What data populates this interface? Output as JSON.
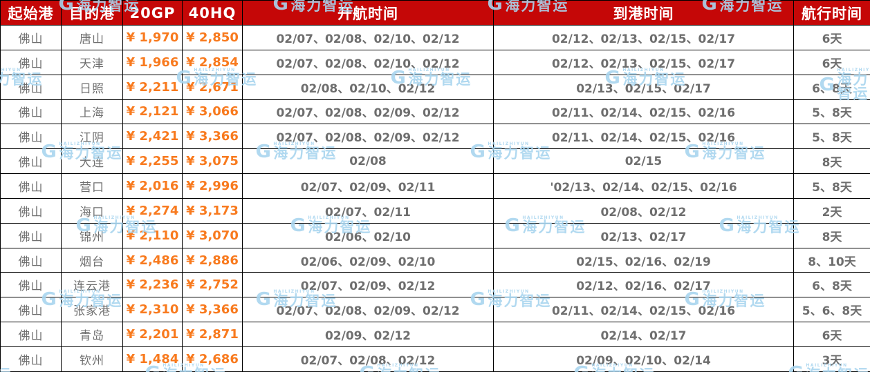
{
  "header": {
    "columns": [
      "起始港",
      "目的港",
      "20GP",
      "40HQ",
      "开航时间",
      "到港时间",
      "航行时间"
    ]
  },
  "rows": [
    {
      "origin": "佛山",
      "destination": "唐山",
      "gp20": "¥ 1,970",
      "hq40": "¥ 2,850",
      "departure": "02/07、02/08、02/10、02/12",
      "arrival": "02/12、02/13、02/15、02/17",
      "duration": "6天"
    },
    {
      "origin": "佛山",
      "destination": "天津",
      "gp20": "¥ 1,966",
      "hq40": "¥ 2,854",
      "departure": "02/07、02/08、02/10、02/12",
      "arrival": "02/12、02/13、02/15、02/17",
      "duration": "6天"
    },
    {
      "origin": "佛山",
      "destination": "日照",
      "gp20": "¥ 2,211",
      "hq40": "¥ 2,671",
      "departure": "02/08、02/10、02/12",
      "arrival": "02/13、02/15、02/17",
      "duration": "6、8天"
    },
    {
      "origin": "佛山",
      "destination": "上海",
      "gp20": "¥ 2,121",
      "hq40": "¥ 3,066",
      "departure": "02/07、02/08、02/09、02/12",
      "arrival": "02/11、02/14、02/15、02/16",
      "duration": "5、8天"
    },
    {
      "origin": "佛山",
      "destination": "江阴",
      "gp20": "¥ 2,421",
      "hq40": "¥ 3,366",
      "departure": "02/07、02/08、02/09、02/12",
      "arrival": "02/11、02/14、02/15、02/16",
      "duration": "5、8天"
    },
    {
      "origin": "佛山",
      "destination": "大连",
      "gp20": "¥ 2,255",
      "hq40": "¥ 3,075",
      "departure": "02/08",
      "arrival": "02/15",
      "duration": "8天"
    },
    {
      "origin": "佛山",
      "destination": "营口",
      "gp20": "¥ 2,016",
      "hq40": "¥ 2,996",
      "departure": "02/07、02/09、02/11",
      "arrival": "'02/13、02/14、02/15、02/16",
      "duration": "5、8天"
    },
    {
      "origin": "佛山",
      "destination": "海口",
      "gp20": "¥ 2,274",
      "hq40": "¥ 3,173",
      "departure": "02/07、02/11",
      "arrival": "02/08、02/12",
      "duration": "2天"
    },
    {
      "origin": "佛山",
      "destination": "锦州",
      "gp20": "¥ 2,110",
      "hq40": "¥ 3,070",
      "departure": "02/06、02/10",
      "arrival": "02/13、02/17",
      "duration": "8天"
    },
    {
      "origin": "佛山",
      "destination": "烟台",
      "gp20": "¥ 2,486",
      "hq40": "¥ 2,886",
      "departure": "02/06、02/09、02/10",
      "arrival": "02/15、02/16、02/19",
      "duration": "8、10天"
    },
    {
      "origin": "佛山",
      "destination": "连云港",
      "gp20": "¥ 2,236",
      "hq40": "¥ 2,752",
      "departure": "02/07、02/09、02/12",
      "arrival": "02/12、02/16、02/17",
      "duration": "6、8天"
    },
    {
      "origin": "佛山",
      "destination": "张家港",
      "gp20": "¥ 2,310",
      "hq40": "¥ 3,366",
      "departure": "02/07、02/08、02/09、02/12",
      "arrival": "02/11、02/14、02/15、02/16",
      "duration": "5、6、8天"
    },
    {
      "origin": "佛山",
      "destination": "青岛",
      "gp20": "¥ 2,201",
      "hq40": "¥ 2,871",
      "departure": "02/09、02/12",
      "arrival": "02/14、02/17",
      "duration": "6天"
    },
    {
      "origin": "佛山",
      "destination": "钦州",
      "gp20": "¥ 1,484",
      "hq40": "¥ 2,686",
      "departure": "02/07、02/08、02/12",
      "arrival": "02/09、02/10、02/14",
      "duration": "3天"
    }
  ],
  "watermark": {
    "logo": "G",
    "brand_cn": "海力智运",
    "brand_en": "HAILIZHIYUN"
  },
  "colors": {
    "header_bg": "#c50707",
    "price_orange": "#f87a1e",
    "text_gray": "#6f6f6f",
    "watermark_blue": "#a9d5ef",
    "border": "#000000"
  }
}
